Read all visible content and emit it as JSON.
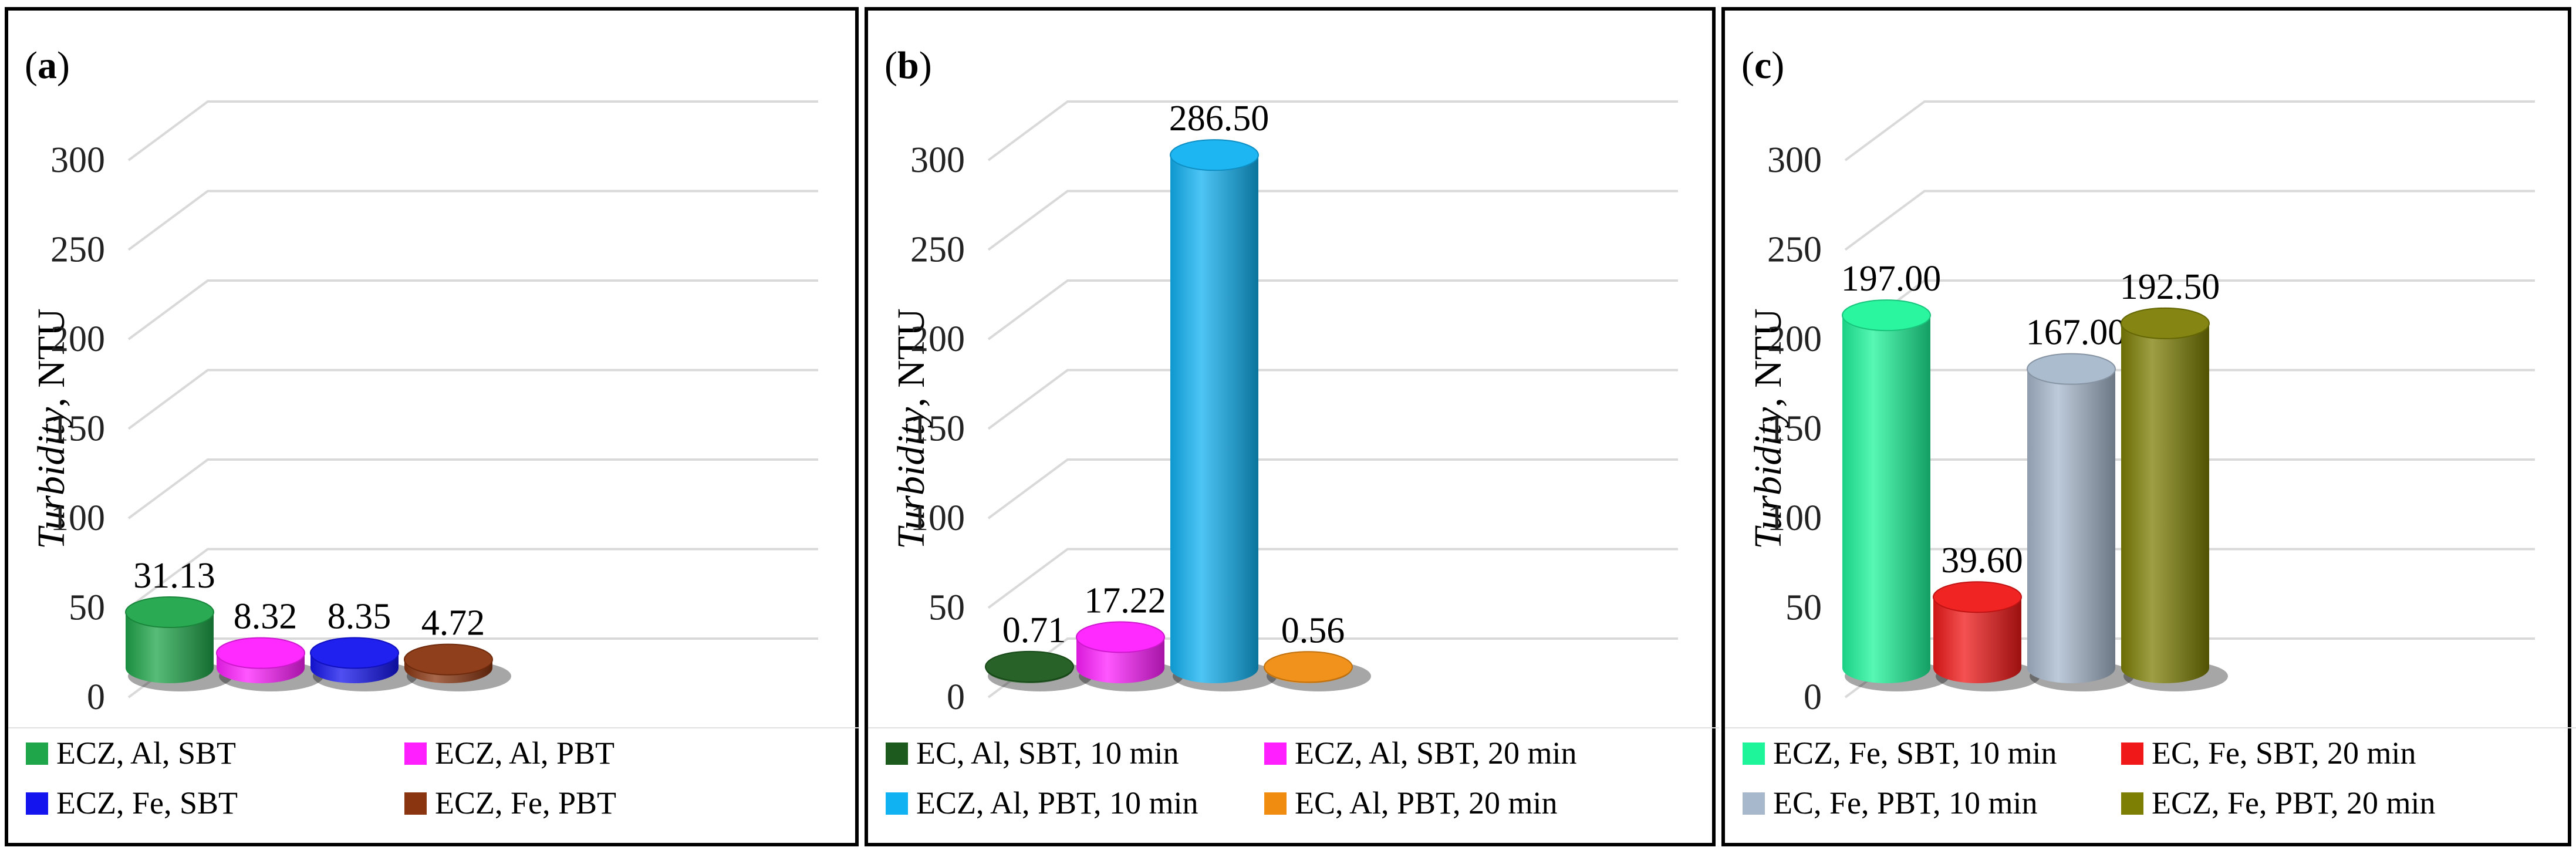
{
  "chart_data": [
    {
      "id": "a",
      "panel_label": "a",
      "type": "bar",
      "style": "3d-cylinder",
      "ylabel_italic": "Turbidity",
      "ylabel_unit": ", NTU",
      "ylim": [
        0,
        300
      ],
      "yticks": [
        "0",
        "50",
        "100",
        "150",
        "200",
        "250",
        "300"
      ],
      "grid": true,
      "legend": "bottom",
      "series": [
        {
          "name": "ECZ, Al, SBT",
          "value": 31.13,
          "label": "31.13",
          "color": "#1fa64a"
        },
        {
          "name": "ECZ, Al, PBT",
          "value": 8.32,
          "label": "8.32",
          "color": "#ff1fff"
        },
        {
          "name": "ECZ, Fe, SBT",
          "value": 8.35,
          "label": "8.35",
          "color": "#1414ee"
        },
        {
          "name": "ECZ, Fe, PBT",
          "value": 4.72,
          "label": "4.72",
          "color": "#8a3510"
        }
      ]
    },
    {
      "id": "b",
      "panel_label": "b",
      "type": "bar",
      "style": "3d-cylinder",
      "ylabel_italic": "Turbidity",
      "ylabel_unit": ", NTU",
      "ylim": [
        0,
        300
      ],
      "yticks": [
        "0",
        "50",
        "100",
        "150",
        "200",
        "250",
        "300"
      ],
      "grid": true,
      "legend": "bottom",
      "series": [
        {
          "name": "EC, Al, SBT, 10 min",
          "value": 0.71,
          "label": "0.71",
          "color": "#1d5a1d"
        },
        {
          "name": "ECZ, Al, SBT, 20 min",
          "value": 17.22,
          "label": "17.22",
          "color": "#ff1fff"
        },
        {
          "name": "ECZ, Al, PBT, 10 min",
          "value": 286.5,
          "label": "286.50",
          "color": "#11b2f2"
        },
        {
          "name": "EC, Al, PBT, 20 min",
          "value": 0.56,
          "label": "0.56",
          "color": "#f08c10"
        }
      ]
    },
    {
      "id": "c",
      "panel_label": "c",
      "type": "bar",
      "style": "3d-cylinder",
      "ylabel_italic": "Turbidity",
      "ylabel_unit": ", NTU",
      "ylim": [
        0,
        300
      ],
      "yticks": [
        "0",
        "50",
        "100",
        "150",
        "200",
        "250",
        "300"
      ],
      "grid": true,
      "legend": "bottom",
      "series": [
        {
          "name": "ECZ, Fe, SBT, 10 min",
          "value": 197.0,
          "label": "197.00",
          "color": "#1ef59a"
        },
        {
          "name": "EC, Fe, SBT, 20 min",
          "value": 39.6,
          "label": "39.60",
          "color": "#f01818"
        },
        {
          "name": "EC, Fe, PBT, 10 min",
          "value": 167.0,
          "label": "167.00",
          "color": "#a7b8cc"
        },
        {
          "name": "ECZ, Fe, PBT, 20 min",
          "value": 192.5,
          "label": "192.50",
          "color": "#7d7f05"
        }
      ]
    }
  ]
}
